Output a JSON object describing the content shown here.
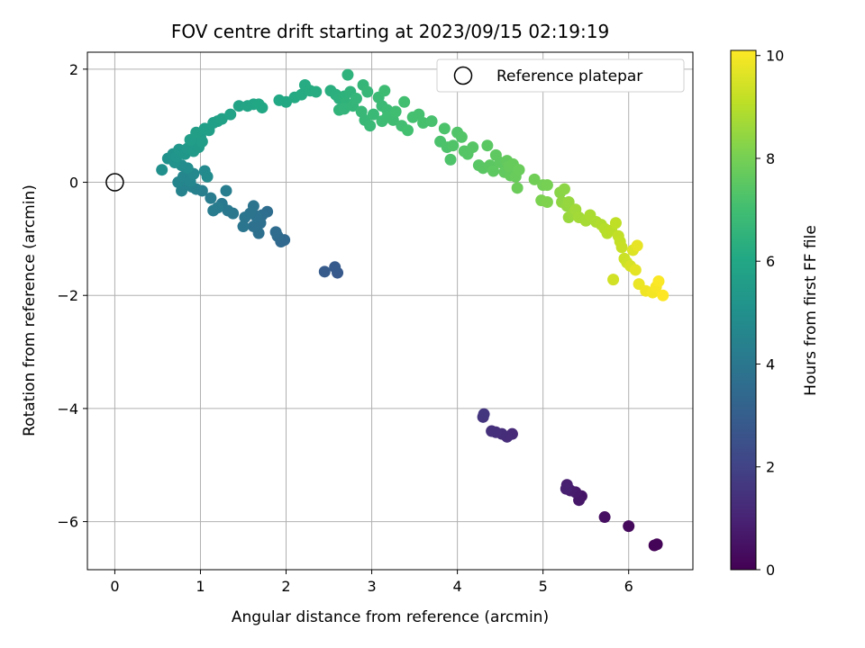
{
  "chart_data": {
    "type": "scatter",
    "title": "FOV centre drift starting at 2023/09/15 02:19:19",
    "xlabel": "Angular distance from reference (arcmin)",
    "ylabel": "Rotation from reference (arcmin)",
    "xlim": [
      -0.32,
      6.75
    ],
    "ylim": [
      -6.85,
      2.3
    ],
    "xticks": [
      0,
      1,
      2,
      3,
      4,
      5,
      6
    ],
    "yticks": [
      -6,
      -4,
      -2,
      0,
      2
    ],
    "grid": true,
    "legend": {
      "position": "top-right",
      "entries": [
        "Reference platepar"
      ]
    },
    "colorbar": {
      "label": "Hours from first FF file",
      "range": [
        0,
        10.1
      ],
      "ticks": [
        0,
        2,
        4,
        6,
        8,
        10
      ],
      "colormap": "viridis"
    },
    "reference_point": {
      "x": 0,
      "y": 0
    },
    "series": [
      {
        "points": [
          [
            6.3,
            -6.42,
            0.05
          ],
          [
            6.33,
            -6.4,
            0.12
          ],
          [
            6.0,
            -6.08,
            0.25
          ],
          [
            5.72,
            -5.92,
            0.4
          ],
          [
            5.45,
            -5.55,
            0.55
          ],
          [
            5.42,
            -5.62,
            0.62
          ],
          [
            5.38,
            -5.48,
            0.7
          ],
          [
            5.32,
            -5.45,
            0.78
          ],
          [
            5.28,
            -5.35,
            0.85
          ],
          [
            5.27,
            -5.42,
            0.9
          ],
          [
            4.64,
            -4.45,
            1.2
          ],
          [
            4.58,
            -4.5,
            1.25
          ],
          [
            4.52,
            -4.45,
            1.3
          ],
          [
            4.45,
            -4.42,
            1.35
          ],
          [
            4.4,
            -4.4,
            1.4
          ],
          [
            4.3,
            -4.15,
            1.5
          ],
          [
            4.31,
            -4.1,
            1.55
          ],
          [
            2.6,
            -1.6,
            2.8
          ],
          [
            2.57,
            -1.5,
            2.85
          ],
          [
            2.45,
            -1.58,
            2.9
          ],
          [
            1.98,
            -1.02,
            3.4
          ],
          [
            1.94,
            -1.05,
            3.45
          ],
          [
            1.9,
            -0.95,
            3.5
          ],
          [
            1.88,
            -0.88,
            3.55
          ],
          [
            1.78,
            -0.52,
            3.6
          ],
          [
            1.72,
            -0.58,
            3.65
          ],
          [
            1.7,
            -0.72,
            3.7
          ],
          [
            1.68,
            -0.9,
            3.72
          ],
          [
            1.62,
            -0.78,
            3.75
          ],
          [
            1.65,
            -0.6,
            3.8
          ],
          [
            1.58,
            -0.55,
            3.85
          ],
          [
            1.62,
            -0.42,
            3.88
          ],
          [
            1.52,
            -0.62,
            3.9
          ],
          [
            1.5,
            -0.78,
            3.92
          ],
          [
            1.38,
            -0.55,
            4.0
          ],
          [
            1.32,
            -0.5,
            4.05
          ],
          [
            1.25,
            -0.38,
            4.1
          ],
          [
            1.2,
            -0.45,
            4.15
          ],
          [
            1.15,
            -0.5,
            4.18
          ],
          [
            1.12,
            -0.28,
            4.2
          ],
          [
            1.3,
            -0.15,
            4.25
          ],
          [
            1.02,
            -0.15,
            4.3
          ],
          [
            0.95,
            -0.12,
            4.35
          ],
          [
            0.9,
            -0.08,
            4.4
          ],
          [
            0.84,
            -0.05,
            4.45
          ],
          [
            0.78,
            -0.15,
            4.5
          ],
          [
            0.74,
            0.0,
            4.55
          ],
          [
            0.8,
            0.1,
            4.6
          ],
          [
            0.88,
            0.02,
            4.65
          ],
          [
            0.92,
            0.15,
            4.7
          ],
          [
            1.05,
            0.2,
            4.75
          ],
          [
            1.08,
            0.1,
            4.8
          ],
          [
            0.85,
            0.25,
            4.85
          ],
          [
            0.78,
            0.3,
            4.9
          ],
          [
            0.55,
            0.22,
            5.0
          ],
          [
            0.62,
            0.42,
            5.05
          ],
          [
            0.7,
            0.35,
            5.1
          ],
          [
            0.68,
            0.5,
            5.15
          ],
          [
            0.72,
            0.45,
            5.2
          ],
          [
            0.75,
            0.58,
            5.25
          ],
          [
            0.82,
            0.5,
            5.3
          ],
          [
            0.85,
            0.6,
            5.35
          ],
          [
            0.9,
            0.7,
            5.4
          ],
          [
            0.92,
            0.55,
            5.45
          ],
          [
            0.98,
            0.62,
            5.5
          ],
          [
            1.0,
            0.8,
            5.55
          ],
          [
            1.02,
            0.72,
            5.58
          ],
          [
            0.88,
            0.75,
            5.6
          ],
          [
            0.95,
            0.88,
            5.62
          ],
          [
            1.05,
            0.95,
            5.65
          ],
          [
            1.1,
            0.92,
            5.68
          ],
          [
            1.15,
            1.05,
            5.7
          ],
          [
            1.2,
            1.08,
            5.72
          ],
          [
            1.25,
            1.12,
            5.75
          ],
          [
            1.35,
            1.2,
            5.8
          ],
          [
            1.45,
            1.35,
            5.85
          ],
          [
            1.55,
            1.35,
            5.9
          ],
          [
            1.62,
            1.38,
            5.95
          ],
          [
            1.68,
            1.38,
            6.0
          ],
          [
            1.72,
            1.32,
            6.02
          ],
          [
            1.92,
            1.45,
            6.05
          ],
          [
            2.0,
            1.42,
            6.08
          ],
          [
            2.1,
            1.5,
            6.12
          ],
          [
            2.18,
            1.55,
            6.15
          ],
          [
            2.22,
            1.72,
            6.18
          ],
          [
            2.28,
            1.62,
            6.2
          ],
          [
            2.35,
            1.6,
            6.22
          ],
          [
            2.52,
            1.62,
            6.3
          ],
          [
            2.58,
            1.55,
            6.35
          ],
          [
            2.62,
            1.48,
            6.4
          ],
          [
            2.68,
            1.52,
            6.45
          ],
          [
            2.72,
            1.9,
            6.48
          ],
          [
            2.75,
            1.6,
            6.5
          ],
          [
            2.7,
            1.4,
            6.52
          ],
          [
            2.62,
            1.28,
            6.55
          ],
          [
            2.68,
            1.3,
            6.58
          ],
          [
            2.78,
            1.35,
            6.6
          ],
          [
            2.82,
            1.48,
            6.62
          ],
          [
            2.9,
            1.72,
            6.65
          ],
          [
            2.95,
            1.6,
            6.68
          ],
          [
            2.88,
            1.25,
            6.7
          ],
          [
            2.92,
            1.1,
            6.72
          ],
          [
            2.98,
            1.0,
            6.75
          ],
          [
            3.02,
            1.2,
            6.78
          ],
          [
            3.08,
            1.5,
            6.8
          ],
          [
            3.12,
            1.35,
            6.82
          ],
          [
            3.18,
            1.28,
            6.85
          ],
          [
            3.12,
            1.08,
            6.88
          ],
          [
            3.15,
            1.62,
            6.9
          ],
          [
            3.18,
            1.15,
            6.92
          ],
          [
            3.25,
            1.1,
            6.95
          ],
          [
            3.28,
            1.25,
            6.98
          ],
          [
            3.35,
            1.0,
            7.0
          ],
          [
            3.38,
            1.42,
            7.02
          ],
          [
            3.42,
            0.92,
            7.05
          ],
          [
            3.48,
            1.15,
            7.08
          ],
          [
            3.55,
            1.2,
            7.1
          ],
          [
            3.6,
            1.05,
            7.12
          ],
          [
            3.7,
            1.08,
            7.15
          ],
          [
            3.8,
            0.72,
            7.2
          ],
          [
            3.85,
            0.95,
            7.22
          ],
          [
            3.88,
            0.62,
            7.25
          ],
          [
            3.92,
            0.4,
            7.28
          ],
          [
            3.95,
            0.65,
            7.3
          ],
          [
            4.0,
            0.88,
            7.32
          ],
          [
            4.05,
            0.8,
            7.35
          ],
          [
            4.08,
            0.55,
            7.38
          ],
          [
            4.12,
            0.5,
            7.4
          ],
          [
            4.18,
            0.62,
            7.42
          ],
          [
            4.25,
            0.3,
            7.45
          ],
          [
            4.3,
            0.25,
            7.48
          ],
          [
            4.35,
            0.65,
            7.5
          ],
          [
            4.38,
            0.3,
            7.52
          ],
          [
            4.42,
            0.2,
            7.55
          ],
          [
            4.45,
            0.48,
            7.58
          ],
          [
            4.5,
            0.35,
            7.6
          ],
          [
            4.55,
            0.18,
            7.62
          ],
          [
            4.58,
            0.38,
            7.65
          ],
          [
            4.62,
            0.12,
            7.68
          ],
          [
            4.6,
            0.28,
            7.7
          ],
          [
            4.65,
            0.32,
            7.72
          ],
          [
            4.68,
            0.1,
            7.75
          ],
          [
            4.72,
            0.22,
            7.78
          ],
          [
            4.7,
            -0.1,
            7.8
          ],
          [
            4.9,
            0.05,
            7.9
          ],
          [
            5.0,
            -0.05,
            7.95
          ],
          [
            5.05,
            -0.05,
            8.0
          ],
          [
            4.98,
            -0.32,
            8.1
          ],
          [
            5.05,
            -0.35,
            8.15
          ],
          [
            5.2,
            -0.18,
            8.3
          ],
          [
            5.25,
            -0.12,
            8.35
          ],
          [
            5.22,
            -0.35,
            8.4
          ],
          [
            5.28,
            -0.42,
            8.45
          ],
          [
            5.3,
            -0.35,
            8.5
          ],
          [
            5.3,
            -0.62,
            8.55
          ],
          [
            5.35,
            -0.55,
            8.6
          ],
          [
            5.38,
            -0.48,
            8.65
          ],
          [
            5.42,
            -0.62,
            8.7
          ],
          [
            5.5,
            -0.68,
            8.75
          ],
          [
            5.55,
            -0.58,
            8.8
          ],
          [
            5.62,
            -0.7,
            8.85
          ],
          [
            5.68,
            -0.75,
            8.9
          ],
          [
            5.72,
            -0.82,
            8.95
          ],
          [
            5.75,
            -0.9,
            9.0
          ],
          [
            5.8,
            -0.85,
            9.05
          ],
          [
            5.85,
            -0.72,
            9.1
          ],
          [
            5.88,
            -0.95,
            9.15
          ],
          [
            5.9,
            -1.05,
            9.2
          ],
          [
            5.92,
            -1.15,
            9.25
          ],
          [
            5.95,
            -1.35,
            9.3
          ],
          [
            5.98,
            -1.42,
            9.35
          ],
          [
            5.82,
            -1.72,
            9.4
          ],
          [
            6.02,
            -1.48,
            9.5
          ],
          [
            6.05,
            -1.2,
            9.6
          ],
          [
            6.08,
            -1.55,
            9.7
          ],
          [
            6.1,
            -1.12,
            9.75
          ],
          [
            6.12,
            -1.8,
            9.8
          ],
          [
            6.2,
            -1.92,
            9.9
          ],
          [
            6.28,
            -1.95,
            9.95
          ],
          [
            6.32,
            -1.85,
            10.0
          ],
          [
            6.35,
            -1.75,
            10.05
          ],
          [
            6.4,
            -2.0,
            10.1
          ]
        ]
      }
    ]
  }
}
